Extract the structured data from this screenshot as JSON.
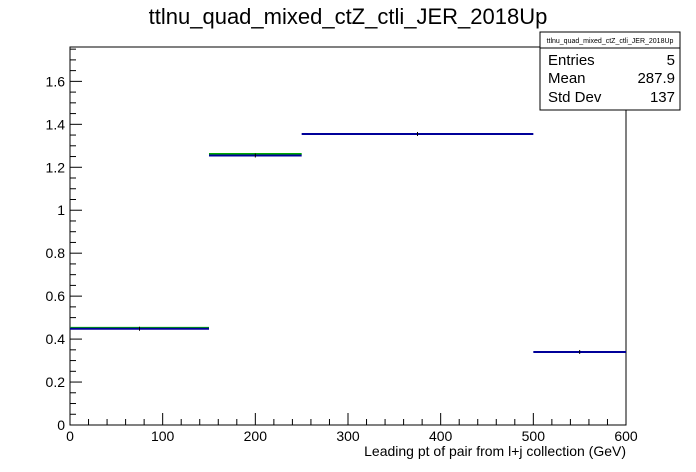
{
  "chart_data": {
    "type": "histogram",
    "title": "ttlnu_quad_mixed_ctZ_ctli_JER_2018Up",
    "xlabel": "Leading pt of pair from l+j collection (GeV)",
    "ylabel": "",
    "xlim": [
      0,
      600
    ],
    "ylim": [
      0,
      1.76
    ],
    "x_ticks": [
      0,
      100,
      200,
      300,
      400,
      500,
      600
    ],
    "y_ticks": [
      0,
      0.2,
      0.4,
      0.6,
      0.8,
      1,
      1.2,
      1.4,
      1.6
    ],
    "x_tick_labels": [
      "0",
      "100",
      "200",
      "300",
      "400",
      "500",
      "600"
    ],
    "y_tick_labels": [
      "0",
      "0.2",
      "0.4",
      "0.6",
      "0.8",
      "1",
      "1.2",
      "1.4",
      "1.6"
    ],
    "bins": [
      {
        "xlow": 0,
        "xhigh": 150,
        "value": 0.448
      },
      {
        "xlow": 150,
        "xhigh": 250,
        "value": 1.255
      },
      {
        "xlow": 250,
        "xhigh": 500,
        "value": 1.355
      },
      {
        "xlow": 500,
        "xhigh": 600,
        "value": 0.34
      }
    ],
    "overlay_bins": [
      {
        "xlow": 0,
        "xhigh": 150,
        "value": 0.452
      },
      {
        "xlow": 150,
        "xhigh": 250,
        "value": 1.262
      }
    ],
    "stats": {
      "name": "ttlnu_quad_mixed_ctZ_ctli_JER_2018Up",
      "rows": [
        {
          "label": "Entries",
          "value": "5"
        },
        {
          "label": "Mean",
          "value": "287.9"
        },
        {
          "label": "Std Dev",
          "value": "137"
        }
      ]
    },
    "colors": {
      "main": "#000099",
      "overlay": "#00aa00",
      "axis": "#000000"
    }
  }
}
